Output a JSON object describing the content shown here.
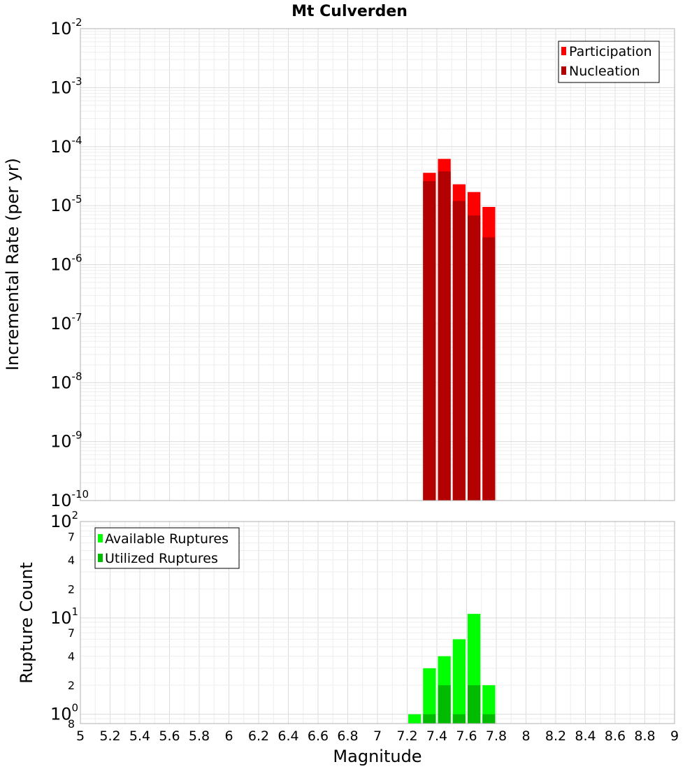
{
  "chart_data": [
    {
      "type": "bar",
      "title": "Mt Culverden",
      "ylabel": "Incremental Rate (per yr)",
      "xlabel": "",
      "y_scale": "log",
      "ylim": [
        1e-10,
        0.01
      ],
      "xlim": [
        5,
        9
      ],
      "grid": true,
      "legend_position": "top-right",
      "y_ticks": [
        {
          "base": "10",
          "exp": "-10"
        },
        {
          "base": "10",
          "exp": "-9"
        },
        {
          "base": "10",
          "exp": "-8"
        },
        {
          "base": "10",
          "exp": "-7"
        },
        {
          "base": "10",
          "exp": "-6"
        },
        {
          "base": "10",
          "exp": "-5"
        },
        {
          "base": "10",
          "exp": "-4"
        },
        {
          "base": "10",
          "exp": "-3"
        },
        {
          "base": "10",
          "exp": "-2"
        }
      ],
      "bin_width": 0.1,
      "series": [
        {
          "name": "Participation",
          "color": "#ff0000",
          "x": [
            7.35,
            7.45,
            7.55,
            7.65,
            7.75
          ],
          "values": [
            3.6e-05,
            6.2e-05,
            2.3e-05,
            1.7e-05,
            9.5e-06
          ]
        },
        {
          "name": "Nucleation",
          "color": "#b30000",
          "x": [
            7.35,
            7.45,
            7.55,
            7.65,
            7.75
          ],
          "values": [
            2.6e-05,
            3.8e-05,
            1.2e-05,
            6.8e-06,
            2.9e-06
          ]
        }
      ]
    },
    {
      "type": "bar",
      "title": "",
      "ylabel": "Rupture Count",
      "xlabel": "Magnitude",
      "y_scale": "log",
      "ylim": [
        0.8,
        100
      ],
      "xlim": [
        5,
        9
      ],
      "grid": true,
      "legend_position": "top-left",
      "y_major_ticks": [
        {
          "base": "10",
          "exp": "0"
        },
        {
          "base": "10",
          "exp": "1"
        },
        {
          "base": "10",
          "exp": "2"
        }
      ],
      "y_minor_ticks": [
        "8",
        "2",
        "4",
        "7",
        "2",
        "4",
        "7"
      ],
      "x_ticks": [
        "5",
        "5.2",
        "5.4",
        "5.6",
        "5.8",
        "6",
        "6.2",
        "6.4",
        "6.6",
        "6.8",
        "7",
        "7.2",
        "7.4",
        "7.6",
        "7.8",
        "8",
        "8.2",
        "8.4",
        "8.6",
        "8.8",
        "9"
      ],
      "bin_width": 0.1,
      "series": [
        {
          "name": "Available Ruptures",
          "color": "#00ff00",
          "x": [
            7.25,
            7.35,
            7.45,
            7.55,
            7.65,
            7.75
          ],
          "values": [
            1,
            3,
            4,
            6,
            11,
            2
          ]
        },
        {
          "name": "Utilized Ruptures",
          "color": "#00bb00",
          "x": [
            7.35,
            7.45,
            7.55,
            7.65,
            7.75
          ],
          "values": [
            1,
            2,
            1,
            2,
            1
          ]
        }
      ]
    }
  ]
}
